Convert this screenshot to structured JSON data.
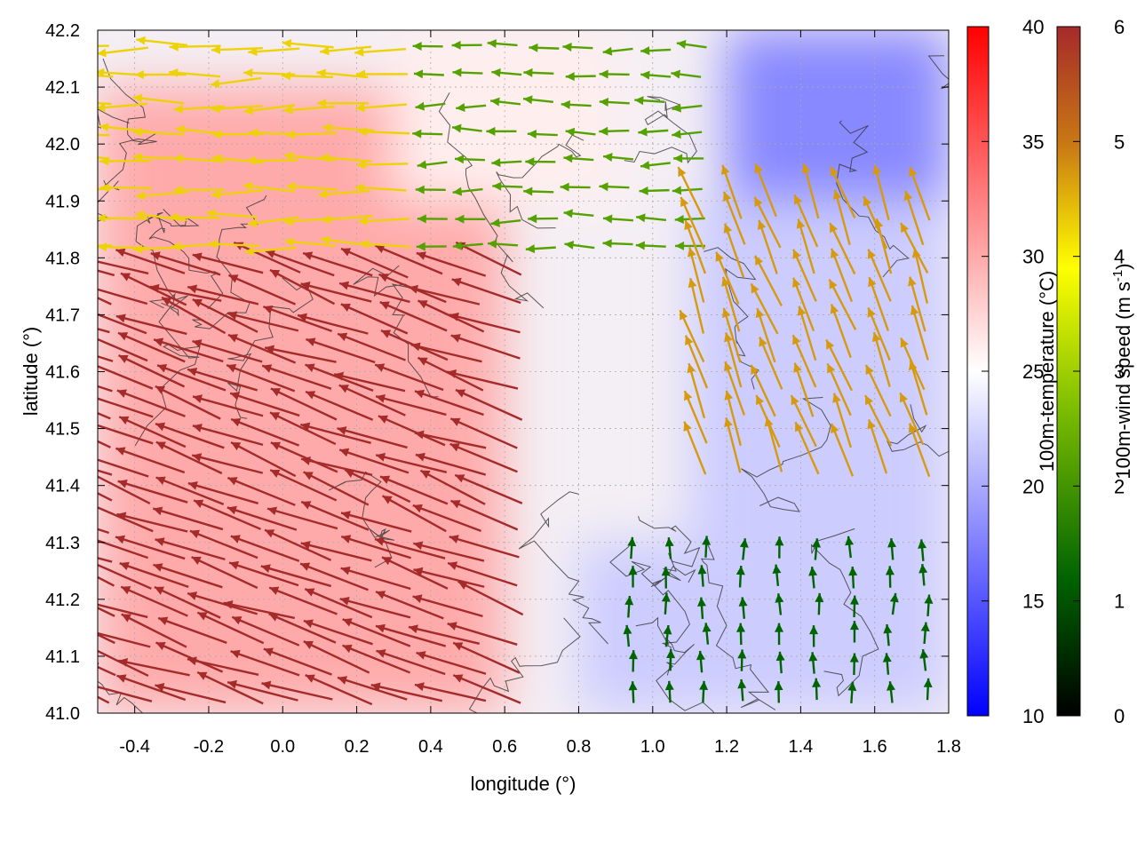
{
  "chart_data": {
    "type": "heatmap",
    "title": "",
    "xlabel": "longitude (°)",
    "ylabel": "latitude (°)",
    "xlim": [
      -0.5,
      1.8
    ],
    "ylim": [
      41.0,
      42.2
    ],
    "x_ticks": [
      "-0.4",
      "-0.2",
      "0.0",
      "0.2",
      "0.4",
      "0.6",
      "0.8",
      "1.0",
      "1.2",
      "1.4",
      "1.6",
      "1.8"
    ],
    "y_ticks": [
      "41.0",
      "41.1",
      "41.2",
      "41.3",
      "41.4",
      "41.5",
      "41.6",
      "41.7",
      "41.8",
      "41.9",
      "42.0",
      "42.1",
      "42.2"
    ],
    "grid": true,
    "temperature_colorbar": {
      "label": "100m-temperature (°C)",
      "range": [
        10,
        40
      ],
      "ticks": [
        "10",
        "15",
        "20",
        "25",
        "30",
        "35",
        "40"
      ],
      "colors": [
        "#0000ff",
        "#ffffff",
        "#ff0000"
      ]
    },
    "windspeed_colorbar": {
      "label": "100m-wind speed (m s-1)",
      "range": [
        0,
        6
      ],
      "ticks": [
        "0",
        "1",
        "2",
        "3",
        "4",
        "5",
        "6"
      ],
      "colors": [
        "#000000",
        "#006400",
        "#7fbf00",
        "#ffff00",
        "#c87814",
        "#a52a2a"
      ]
    },
    "temperature_field_regions": [
      {
        "region": "west and southwest",
        "lon": [
          -0.5,
          0.6
        ],
        "lat": [
          41.0,
          42.1
        ],
        "temperature_c": 30
      },
      {
        "region": "north-central",
        "lon": [
          0.3,
          0.9
        ],
        "lat": [
          41.9,
          42.2
        ],
        "temperature_c": 26
      },
      {
        "region": "northeast",
        "lon": [
          1.2,
          1.8
        ],
        "lat": [
          41.9,
          42.2
        ],
        "temperature_c": 18
      },
      {
        "region": "east",
        "lon": [
          1.1,
          1.8
        ],
        "lat": [
          41.3,
          41.9
        ],
        "temperature_c": 22
      },
      {
        "region": "southeast",
        "lon": [
          0.8,
          1.8
        ],
        "lat": [
          41.0,
          41.3
        ],
        "temperature_c": 22
      }
    ],
    "wind_field_regions": [
      {
        "region": "south-west",
        "lon": [
          -0.5,
          0.7
        ],
        "lat": [
          41.0,
          41.8
        ],
        "speed_ms": 6.0,
        "direction_to": "west-northwest"
      },
      {
        "region": "north-west",
        "lon": [
          -0.5,
          0.4
        ],
        "lat": [
          41.8,
          42.2
        ],
        "speed_ms": 4.0,
        "direction_to": "west"
      },
      {
        "region": "north-central",
        "lon": [
          0.4,
          1.2
        ],
        "lat": [
          41.8,
          42.2
        ],
        "speed_ms": 2.0,
        "direction_to": "west"
      },
      {
        "region": "east",
        "lon": [
          1.1,
          1.8
        ],
        "lat": [
          41.4,
          41.9
        ],
        "speed_ms": 4.5,
        "direction_to": "north-northwest"
      },
      {
        "region": "south-east",
        "lon": [
          0.9,
          1.8
        ],
        "lat": [
          41.0,
          41.3
        ],
        "speed_ms": 1.2,
        "direction_to": "north"
      }
    ]
  }
}
